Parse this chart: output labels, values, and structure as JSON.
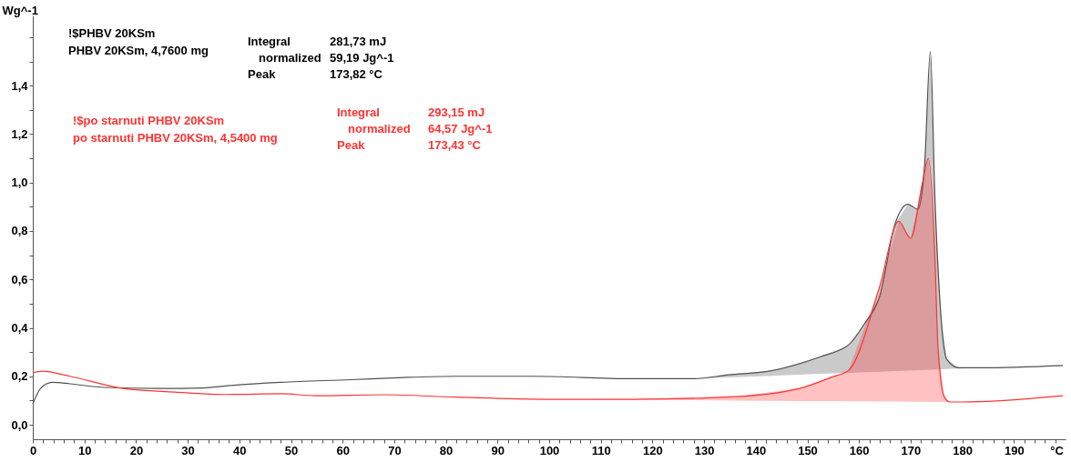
{
  "chart_data": {
    "type": "line",
    "xlabel": "°C",
    "ylabel": "Wg^-1",
    "xlim": [
      0,
      200
    ],
    "ylim": [
      -0.06,
      1.69
    ],
    "xticks": [
      0,
      {
        "value": 2,
        "label": null
      },
      {
        "value": 4,
        "label": null
      },
      {
        "value": 6,
        "label": null
      },
      {
        "value": 8,
        "label": null
      },
      10,
      {
        "value": 12,
        "label": null
      },
      {
        "value": 14,
        "label": null
      },
      {
        "value": 16,
        "label": null
      },
      {
        "value": 18,
        "label": null
      },
      20,
      {
        "value": 22,
        "label": null
      },
      {
        "value": 24,
        "label": null
      },
      {
        "value": 26,
        "label": null
      },
      {
        "value": 28,
        "label": null
      },
      30,
      {
        "value": 32,
        "label": null
      },
      {
        "value": 34,
        "label": null
      },
      {
        "value": 36,
        "label": null
      },
      {
        "value": 38,
        "label": null
      },
      40,
      {
        "value": 42,
        "label": null
      },
      {
        "value": 44,
        "label": null
      },
      {
        "value": 46,
        "label": null
      },
      {
        "value": 48,
        "label": null
      },
      50,
      {
        "value": 52,
        "label": null
      },
      {
        "value": 54,
        "label": null
      },
      {
        "value": 56,
        "label": null
      },
      {
        "value": 58,
        "label": null
      },
      60,
      {
        "value": 62,
        "label": null
      },
      {
        "value": 64,
        "label": null
      },
      {
        "value": 66,
        "label": null
      },
      {
        "value": 68,
        "label": null
      },
      70,
      {
        "value": 72,
        "label": null
      },
      {
        "value": 74,
        "label": null
      },
      {
        "value": 76,
        "label": null
      },
      {
        "value": 78,
        "label": null
      },
      80,
      {
        "value": 82,
        "label": null
      },
      {
        "value": 84,
        "label": null
      },
      {
        "value": 86,
        "label": null
      },
      {
        "value": 88,
        "label": null
      },
      90,
      {
        "value": 92,
        "label": null
      },
      {
        "value": 94,
        "label": null
      },
      {
        "value": 96,
        "label": null
      },
      {
        "value": 98,
        "label": null
      },
      100,
      {
        "value": 102,
        "label": null
      },
      {
        "value": 104,
        "label": null
      },
      {
        "value": 106,
        "label": null
      },
      {
        "value": 108,
        "label": null
      },
      110,
      {
        "value": 112,
        "label": null
      },
      {
        "value": 114,
        "label": null
      },
      {
        "value": 116,
        "label": null
      },
      {
        "value": 118,
        "label": null
      },
      120,
      {
        "value": 122,
        "label": null
      },
      {
        "value": 124,
        "label": null
      },
      {
        "value": 126,
        "label": null
      },
      {
        "value": 128,
        "label": null
      },
      130,
      {
        "value": 132,
        "label": null
      },
      {
        "value": 134,
        "label": null
      },
      {
        "value": 136,
        "label": null
      },
      {
        "value": 138,
        "label": null
      },
      140,
      {
        "value": 142,
        "label": null
      },
      {
        "value": 144,
        "label": null
      },
      {
        "value": 146,
        "label": null
      },
      {
        "value": 148,
        "label": null
      },
      150,
      {
        "value": 152,
        "label": null
      },
      {
        "value": 154,
        "label": null
      },
      {
        "value": 156,
        "label": null
      },
      {
        "value": 158,
        "label": null
      },
      160,
      {
        "value": 162,
        "label": null
      },
      {
        "value": 164,
        "label": null
      },
      {
        "value": 166,
        "label": null
      },
      {
        "value": 168,
        "label": null
      },
      170,
      {
        "value": 172,
        "label": null
      },
      {
        "value": 174,
        "label": null
      },
      {
        "value": 176,
        "label": null
      },
      {
        "value": 178,
        "label": null
      },
      180,
      {
        "value": 182,
        "label": null
      },
      {
        "value": 184,
        "label": null
      },
      {
        "value": 186,
        "label": null
      },
      {
        "value": 188,
        "label": null
      },
      190,
      {
        "value": 192,
        "label": null
      },
      {
        "value": 194,
        "label": null
      },
      {
        "value": 196,
        "label": null
      },
      {
        "value": 198,
        "label": null
      }
    ],
    "yticks": [
      {
        "value": 0,
        "label": "0,0"
      },
      {
        "value": 0.1,
        "label": null
      },
      {
        "value": 0.2,
        "label": "0,2"
      },
      {
        "value": 0.3,
        "label": null
      },
      {
        "value": 0.4,
        "label": "0,4"
      },
      {
        "value": 0.5,
        "label": null
      },
      {
        "value": 0.6,
        "label": "0,6"
      },
      {
        "value": 0.7,
        "label": null
      },
      {
        "value": 0.8,
        "label": "0,8"
      },
      {
        "value": 0.9,
        "label": null
      },
      {
        "value": 1.0,
        "label": "1,0"
      },
      {
        "value": 1.1,
        "label": null
      },
      {
        "value": 1.2,
        "label": "1,2"
      },
      {
        "value": 1.3,
        "label": null
      },
      {
        "value": 1.4,
        "label": "1,4"
      },
      {
        "value": 1.5,
        "label": null
      },
      {
        "value": 1.6,
        "label": null
      }
    ],
    "series": [
      {
        "color": "#505050",
        "x": [
          0,
          1.5,
          3.8,
          7.2,
          14,
          24,
          33,
          37.7,
          48,
          61.5,
          71.6,
          82,
          97,
          116,
          128,
          134.7,
          143,
          152.4,
          158,
          161,
          164,
          167,
          169.5,
          171.4,
          172.7,
          173.82,
          174.7,
          175.9,
          177,
          179.4,
          183.5,
          199.5
        ],
        "values": [
          0.086,
          0.15,
          0.175,
          0.169,
          0.154,
          0.15,
          0.152,
          0.161,
          0.175,
          0.186,
          0.195,
          0.2,
          0.2,
          0.19,
          0.19,
          0.206,
          0.223,
          0.28,
          0.33,
          0.415,
          0.53,
          0.83,
          0.91,
          0.89,
          1.07,
          1.54,
          0.94,
          0.44,
          0.27,
          0.235,
          0.235,
          0.245
        ],
        "lower": [
          null,
          null,
          null,
          null,
          null,
          null,
          null,
          null,
          null,
          null,
          null,
          null,
          null,
          null,
          0.19,
          0.195,
          0.202,
          0.21,
          0.214,
          0.217,
          0.219,
          0.222,
          0.224,
          0.225,
          0.226,
          0.227,
          0.228,
          0.229,
          0.23,
          0.232,
          0.235,
          null
        ],
        "upper": [
          null,
          null,
          null,
          null,
          null,
          null,
          null,
          null,
          null,
          null,
          null,
          null,
          null,
          null,
          0.19,
          0.206,
          0.223,
          0.28,
          0.33,
          0.415,
          0.53,
          0.83,
          0.91,
          0.89,
          1.07,
          1.54,
          0.94,
          0.44,
          0.27,
          0.235,
          0.235,
          null
        ]
      },
      {
        "color": "#ff3333",
        "x": [
          0,
          1.8,
          7.2,
          17.5,
          27.5,
          37.7,
          48,
          54.7,
          68,
          82,
          98.8,
          103,
          116,
          136,
          148.5,
          154.5,
          158,
          164,
          167.7,
          170,
          172.3,
          173.43,
          174.7,
          175.3,
          176.5,
          177.6,
          180,
          199.5
        ],
        "values": [
          0.214,
          0.221,
          0.2,
          0.15,
          0.135,
          0.125,
          0.128,
          0.12,
          0.124,
          0.114,
          0.105,
          0.105,
          0.105,
          0.116,
          0.15,
          0.195,
          0.225,
          0.57,
          0.84,
          0.77,
          1.0,
          1.1,
          0.69,
          0.32,
          0.116,
          0.094,
          0.094,
          0.12
        ],
        "lower": [
          null,
          null,
          null,
          null,
          null,
          null,
          null,
          null,
          null,
          null,
          null,
          0.105,
          0.103,
          0.1,
          0.098,
          0.098,
          0.097,
          0.096,
          0.096,
          0.095,
          0.095,
          0.095,
          0.094,
          0.094,
          0.094,
          0.094,
          0.094,
          null
        ],
        "upper": [
          null,
          null,
          null,
          null,
          null,
          null,
          null,
          null,
          null,
          null,
          null,
          0.105,
          0.105,
          0.116,
          0.15,
          0.195,
          0.225,
          0.57,
          0.84,
          0.77,
          1.0,
          1.1,
          0.69,
          0.32,
          0.116,
          0.094,
          0.094,
          null
        ]
      }
    ],
    "annotations": [
      "!$PHBV 20KSm",
      "PHBV 20KSm, 4,7600 mg",
      "Integral",
      "normalized",
      "Peak",
      "281,73 mJ",
      "59,19 Jg^-1",
      "173,82 °C",
      "!$po starnuti PHBV 20KSm",
      "po starnuti PHBV 20KSm, 4,5400 mg",
      "Integral",
      "normalized",
      "Peak",
      "293,15 mJ",
      "64,57 Jg^-1",
      "173,43 °C"
    ]
  }
}
